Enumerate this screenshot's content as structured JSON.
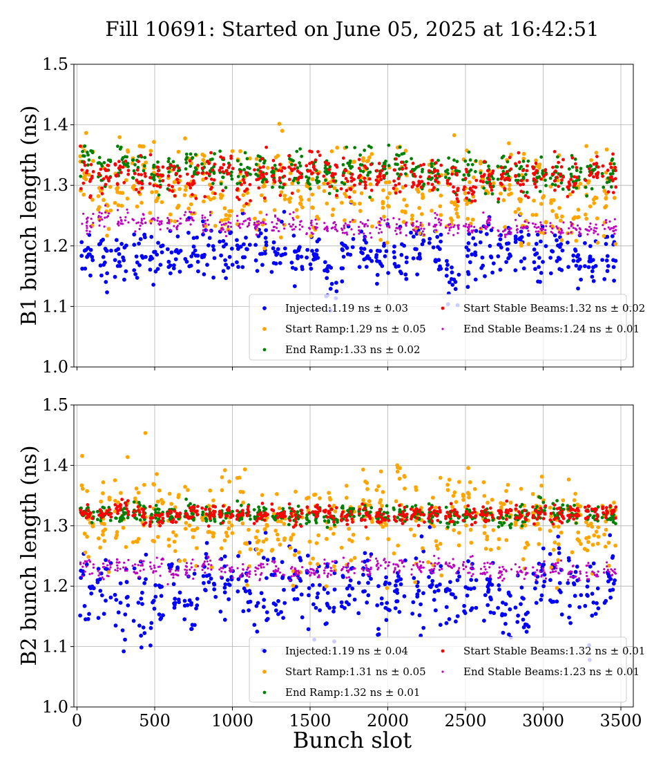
{
  "title": "Fill 10691: Started on June 05, 2025 at 16:42:51",
  "xlabel": "Bunch slot",
  "colors": {
    "injected": "#0000ff",
    "start_ramp": "#ffa500",
    "end_ramp": "#008000",
    "start_stable": "#ff0000",
    "end_stable": "#bf00bf"
  },
  "chart_data": [
    {
      "type": "scatter",
      "ylabel": "B1 bunch length (ns)",
      "xlim": [
        -20,
        3580
      ],
      "ylim": [
        1.0,
        1.5
      ],
      "xticks": [
        0,
        500,
        1000,
        1500,
        2000,
        2500,
        3000,
        3500
      ],
      "xtick_labels": [],
      "yticks": [
        "1.0",
        "1.1",
        "1.2",
        "1.3",
        "1.4",
        "1.5"
      ],
      "grid": true,
      "legend": "lower-right",
      "x_range_bunch_slots": [
        0,
        3420
      ],
      "series": [
        {
          "key": "injected",
          "label": "Injected:1.19 ns ± 0.03",
          "mean": 1.19,
          "std": 0.03,
          "marker": "large"
        },
        {
          "key": "start_ramp",
          "label": "Start Ramp:1.29 ns ± 0.05",
          "mean": 1.29,
          "std": 0.05,
          "marker": "large"
        },
        {
          "key": "end_ramp",
          "label": "End Ramp:1.33 ns ± 0.02",
          "mean": 1.33,
          "std": 0.02,
          "marker": "medium"
        },
        {
          "key": "start_stable",
          "label": "Start Stable Beams:1.32 ns ± 0.02",
          "mean": 1.32,
          "std": 0.02,
          "marker": "medium"
        },
        {
          "key": "end_stable",
          "label": "End Stable Beams:1.24 ns ± 0.01",
          "mean": 1.24,
          "std": 0.01,
          "marker": "small"
        }
      ]
    },
    {
      "type": "scatter",
      "ylabel": "B2 bunch length (ns)",
      "xlim": [
        -20,
        3580
      ],
      "ylim": [
        1.0,
        1.5
      ],
      "xticks": [
        0,
        500,
        1000,
        1500,
        2000,
        2500,
        3000,
        3500
      ],
      "xtick_labels": [
        "0",
        "500",
        "1000",
        "1500",
        "2000",
        "2500",
        "3000",
        "3500"
      ],
      "yticks": [
        "1.0",
        "1.1",
        "1.2",
        "1.3",
        "1.4",
        "1.5"
      ],
      "grid": true,
      "legend": "lower-right",
      "x_range_bunch_slots": [
        0,
        3420
      ],
      "series": [
        {
          "key": "injected",
          "label": "Injected:1.19 ns ± 0.04",
          "mean": 1.19,
          "std": 0.04,
          "marker": "large"
        },
        {
          "key": "start_ramp",
          "label": "Start Ramp:1.31 ns ± 0.05",
          "mean": 1.31,
          "std": 0.05,
          "marker": "large"
        },
        {
          "key": "end_ramp",
          "label": "End Ramp:1.32 ns ± 0.01",
          "mean": 1.32,
          "std": 0.01,
          "marker": "medium"
        },
        {
          "key": "start_stable",
          "label": "Start Stable Beams:1.32 ns ± 0.01",
          "mean": 1.32,
          "std": 0.01,
          "marker": "medium"
        },
        {
          "key": "end_stable",
          "label": "End Stable Beams:1.23 ns ± 0.01",
          "mean": 1.23,
          "std": 0.01,
          "marker": "small"
        }
      ]
    }
  ]
}
